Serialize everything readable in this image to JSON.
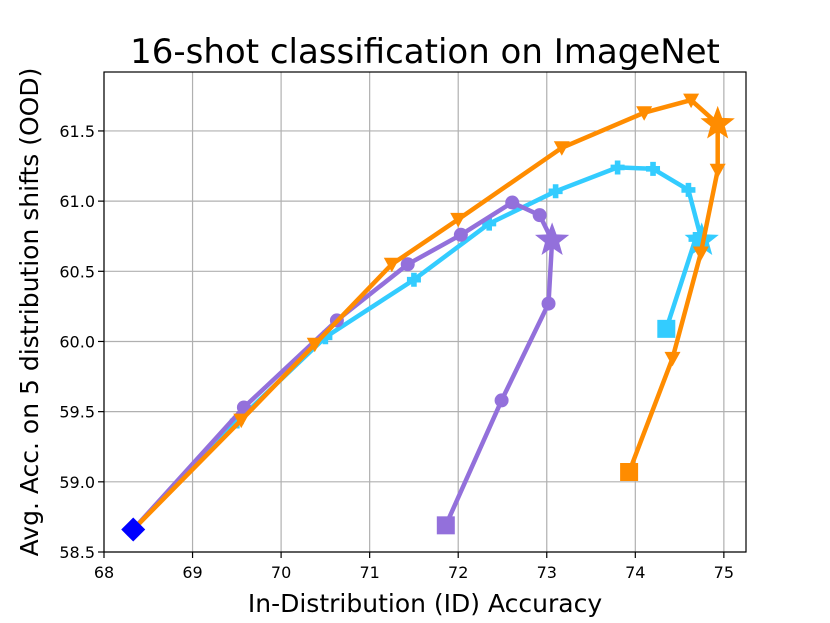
{
  "chart_data": {
    "type": "line",
    "title": "16-shot classification on ImageNet",
    "xlabel": "In-Distribution (ID) Accuracy",
    "ylabel": "Avg. Acc. on 5 distribution shifts (OOD)",
    "xlim": [
      68,
      75.25
    ],
    "ylim": [
      58.5,
      61.92
    ],
    "x_ticks": [
      68,
      69,
      70,
      71,
      72,
      73,
      74,
      75
    ],
    "y_ticks": [
      58.5,
      59.0,
      59.5,
      60.0,
      60.5,
      61.0,
      61.5
    ],
    "grid": true,
    "start_point": {
      "x": 68.33,
      "y": 58.66,
      "color": "#0000ff",
      "marker": "diamond"
    },
    "series": [
      {
        "color": "#33ccff",
        "marker": "plus-filled",
        "end_marker": "square",
        "best_marker": "star",
        "x": [
          68.33,
          69.5,
          70.5,
          71.5,
          72.35,
          73.1,
          73.8,
          74.2,
          74.6,
          74.75,
          74.68,
          74.35
        ],
        "y": [
          58.66,
          59.43,
          60.03,
          60.44,
          60.84,
          61.07,
          61.24,
          61.23,
          61.08,
          60.72,
          60.73,
          60.09
        ]
      },
      {
        "color": "#9370db",
        "marker": "circle",
        "end_marker": "square",
        "best_marker": "star",
        "x": [
          68.33,
          69.58,
          70.63,
          71.43,
          72.03,
          72.61,
          72.92,
          73.06,
          73.02,
          72.49,
          71.86
        ],
        "y": [
          58.66,
          59.53,
          60.15,
          60.55,
          60.76,
          60.99,
          60.9,
          60.72,
          60.27,
          59.58,
          58.69
        ]
      },
      {
        "color": "#ff8c00",
        "marker": "triangle-down",
        "end_marker": "square",
        "best_marker": "star",
        "x": [
          68.33,
          69.55,
          70.38,
          71.25,
          72.0,
          73.17,
          74.1,
          74.63,
          74.93,
          74.93,
          74.74,
          74.42,
          73.93
        ],
        "y": [
          58.66,
          59.44,
          59.98,
          60.55,
          60.87,
          61.38,
          61.63,
          61.72,
          61.55,
          61.22,
          60.63,
          59.88,
          59.07
        ]
      }
    ]
  }
}
